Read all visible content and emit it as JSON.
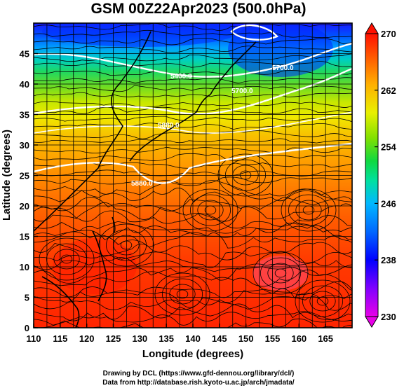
{
  "title": "GSM 00Z22Apr2023 (500.0hPa)",
  "x_axis": {
    "label": "Longitude (degrees)",
    "ticks": [
      "110",
      "115",
      "120",
      "125",
      "130",
      "135",
      "140",
      "145",
      "150",
      "155",
      "160",
      "165"
    ],
    "range": [
      110,
      170
    ]
  },
  "y_axis": {
    "label": "Latitude  (degrees)",
    "ticks": [
      "0",
      "5",
      "10",
      "15",
      "20",
      "25",
      "30",
      "35",
      "40",
      "45"
    ],
    "range": [
      0,
      50
    ]
  },
  "colorbar": {
    "ticks": [
      "230",
      "238",
      "246",
      "254",
      "262",
      "270"
    ],
    "range": [
      230,
      270
    ],
    "colors": [
      "#e800e8",
      "#7a00ff",
      "#0000ff",
      "#0070ff",
      "#00c8ff",
      "#00e080",
      "#30d030",
      "#a0e000",
      "#f0f000",
      "#ffa000",
      "#ff5000",
      "#ff0000"
    ]
  },
  "contour_labels": [
    "5400.0",
    "5700.0",
    "5700.0",
    "5880.0",
    "5880.0"
  ],
  "credits": {
    "line1": "Drawing by DCL (https://www.gfd-dennou.org/library/dcl/)",
    "line2": "Data from http://database.rish.kyoto-u.ac.jp/arch/jmadata/"
  }
}
